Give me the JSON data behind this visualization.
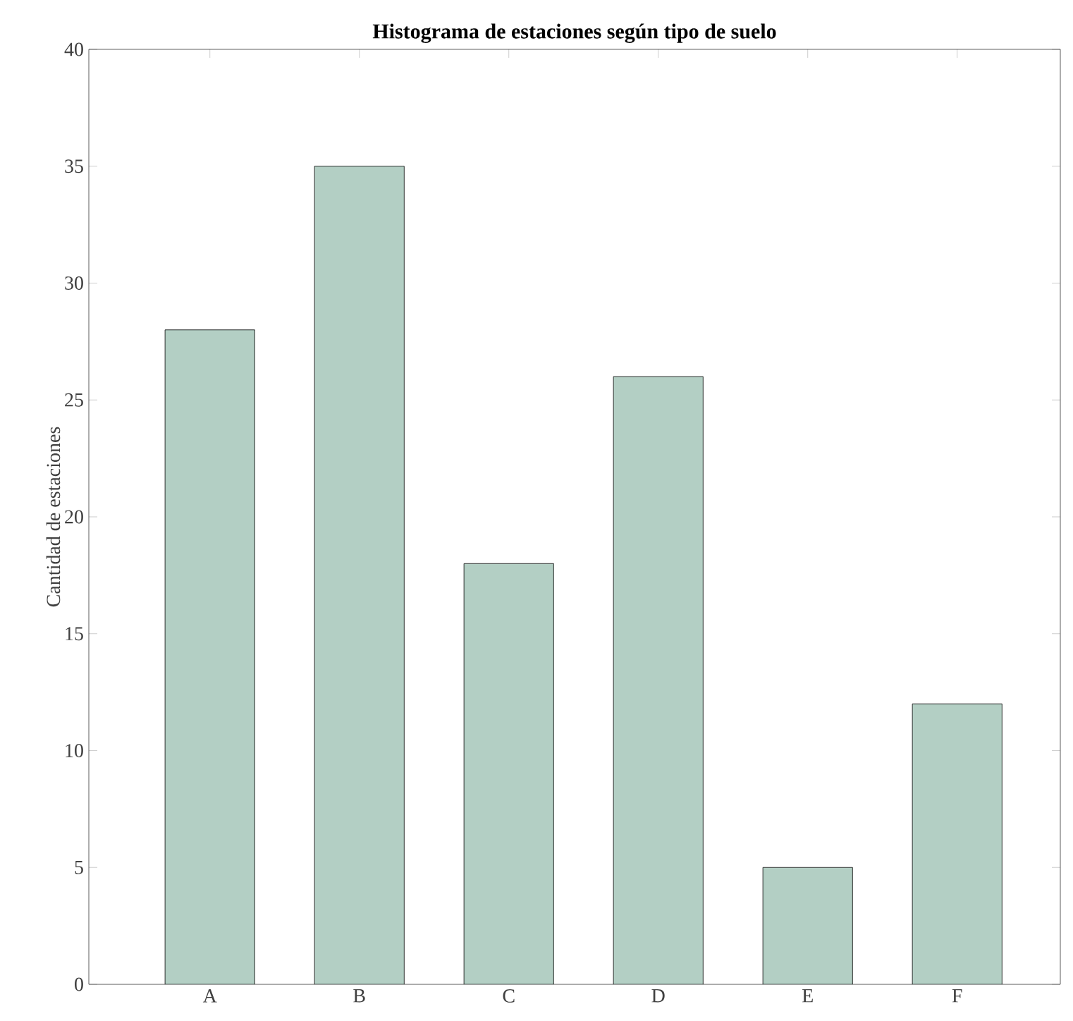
{
  "chart_data": {
    "type": "bar",
    "title": "Histograma de estaciones según tipo de suelo",
    "ylabel": "Cantidad de estaciones",
    "categories": [
      "A",
      "B",
      "C",
      "D",
      "E",
      "F"
    ],
    "values": [
      28,
      35,
      18,
      26,
      5,
      12
    ],
    "color": "#b3cfc4",
    "ylim": [
      0,
      40
    ],
    "yticks": [
      0,
      5,
      10,
      15,
      20,
      25,
      30,
      35,
      40
    ],
    "grid": false
  }
}
